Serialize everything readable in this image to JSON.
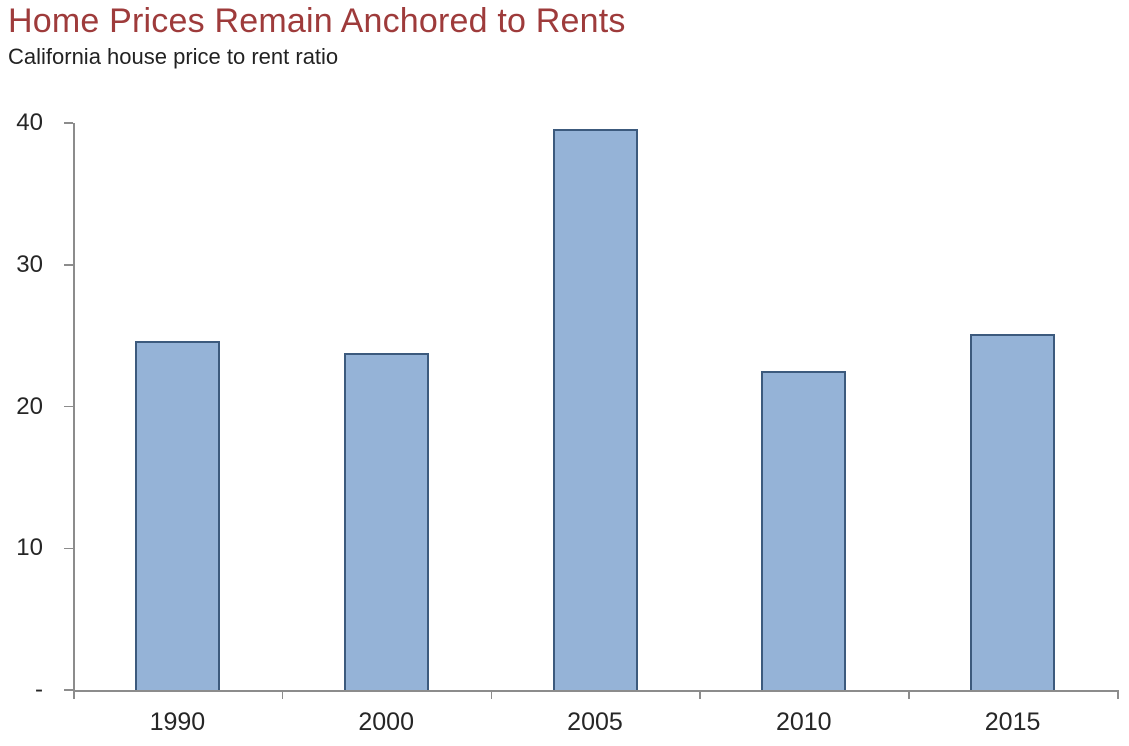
{
  "header": {
    "title": "Home Prices Remain Anchored to Rents",
    "subtitle": "California house price to rent ratio",
    "title_color": "#9E3B3B",
    "subtitle_color": "#222222"
  },
  "chart_data": {
    "type": "bar",
    "title": "Home Prices Remain Anchored to Rents",
    "subtitle": "California house price to rent ratio",
    "categories": [
      "1990",
      "2000",
      "2005",
      "2010",
      "2015"
    ],
    "values": [
      24.6,
      23.8,
      39.6,
      22.5,
      25.1
    ],
    "series_name": "California house price to rent ratio",
    "xlabel": "",
    "ylabel": "",
    "ylim": [
      0,
      40
    ],
    "yticks": [
      {
        "value": 0,
        "label": "-"
      },
      {
        "value": 10,
        "label": "10"
      },
      {
        "value": 20,
        "label": "20"
      },
      {
        "value": 30,
        "label": "30"
      },
      {
        "value": 40,
        "label": "40"
      }
    ],
    "grid": false,
    "legend": "none",
    "colors": {
      "bar_fill": "#95B3D7",
      "bar_border": "#3C5A7D",
      "axis": "#8C8C8C",
      "tick_label": "#262626"
    }
  }
}
